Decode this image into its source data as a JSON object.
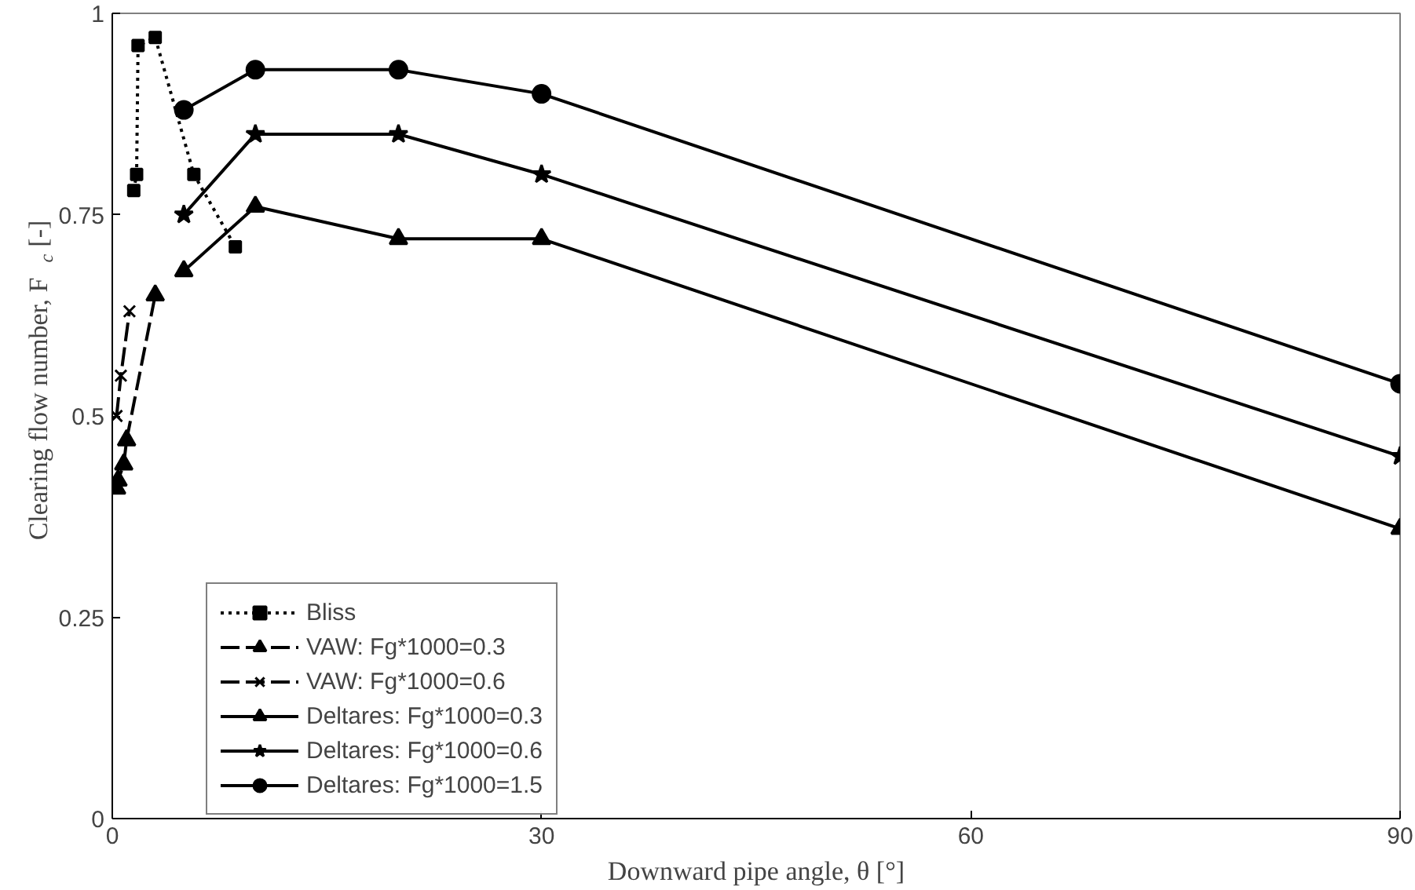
{
  "chart_data": {
    "type": "line",
    "xlabel": "Downward pipe angle, θ [°]",
    "ylabel": "Clearing flow number, F$_{c}$ [-]",
    "xlim": [
      0,
      90
    ],
    "xticks": [
      0,
      30,
      60,
      90
    ],
    "ylim": [
      0,
      1
    ],
    "yticks": [
      0,
      0.25,
      0.5,
      0.75,
      1
    ],
    "grid": false,
    "legend": "bottom left",
    "series": [
      {
        "name": "Bliss",
        "color": "#000000",
        "marker": "square",
        "line_style": "dotted",
        "x": [
          1.5,
          1.7,
          1.8,
          3,
          5.7,
          8.6
        ],
        "values": [
          0.78,
          0.8,
          0.96,
          0.97,
          0.8,
          0.71
        ]
      },
      {
        "name": "VAW: Fg*1000=0.3",
        "color": "#000000",
        "marker": "triangle",
        "line_style": "dashed",
        "x": [
          0.3,
          0.4,
          0.8,
          1.0,
          3
        ],
        "values": [
          0.41,
          0.42,
          0.44,
          0.47,
          0.65
        ]
      },
      {
        "name": "VAW: Fg*1000=0.6",
        "color": "#000000",
        "marker": "cross",
        "line_style": "dashed",
        "x": [
          0.3,
          0.6,
          1.2
        ],
        "values": [
          0.5,
          0.55,
          0.63
        ]
      },
      {
        "name": "Deltares: Fg*1000=0.3",
        "color": "#000000",
        "marker": "triangle",
        "line_style": "solid",
        "x": [
          5,
          10,
          20,
          30,
          90
        ],
        "values": [
          0.68,
          0.76,
          0.72,
          0.72,
          0.36
        ]
      },
      {
        "name": "Deltares: Fg*1000=0.6",
        "color": "#000000",
        "marker": "star",
        "line_style": "solid",
        "x": [
          5,
          10,
          20,
          30,
          90
        ],
        "values": [
          0.75,
          0.85,
          0.85,
          0.8,
          0.45
        ]
      },
      {
        "name": "Deltares: Fg*1000=1.5",
        "color": "#000000",
        "marker": "circle",
        "line_style": "solid",
        "x": [
          5,
          10,
          20,
          30,
          90
        ],
        "values": [
          0.88,
          0.93,
          0.93,
          0.9,
          0.54
        ]
      }
    ]
  }
}
